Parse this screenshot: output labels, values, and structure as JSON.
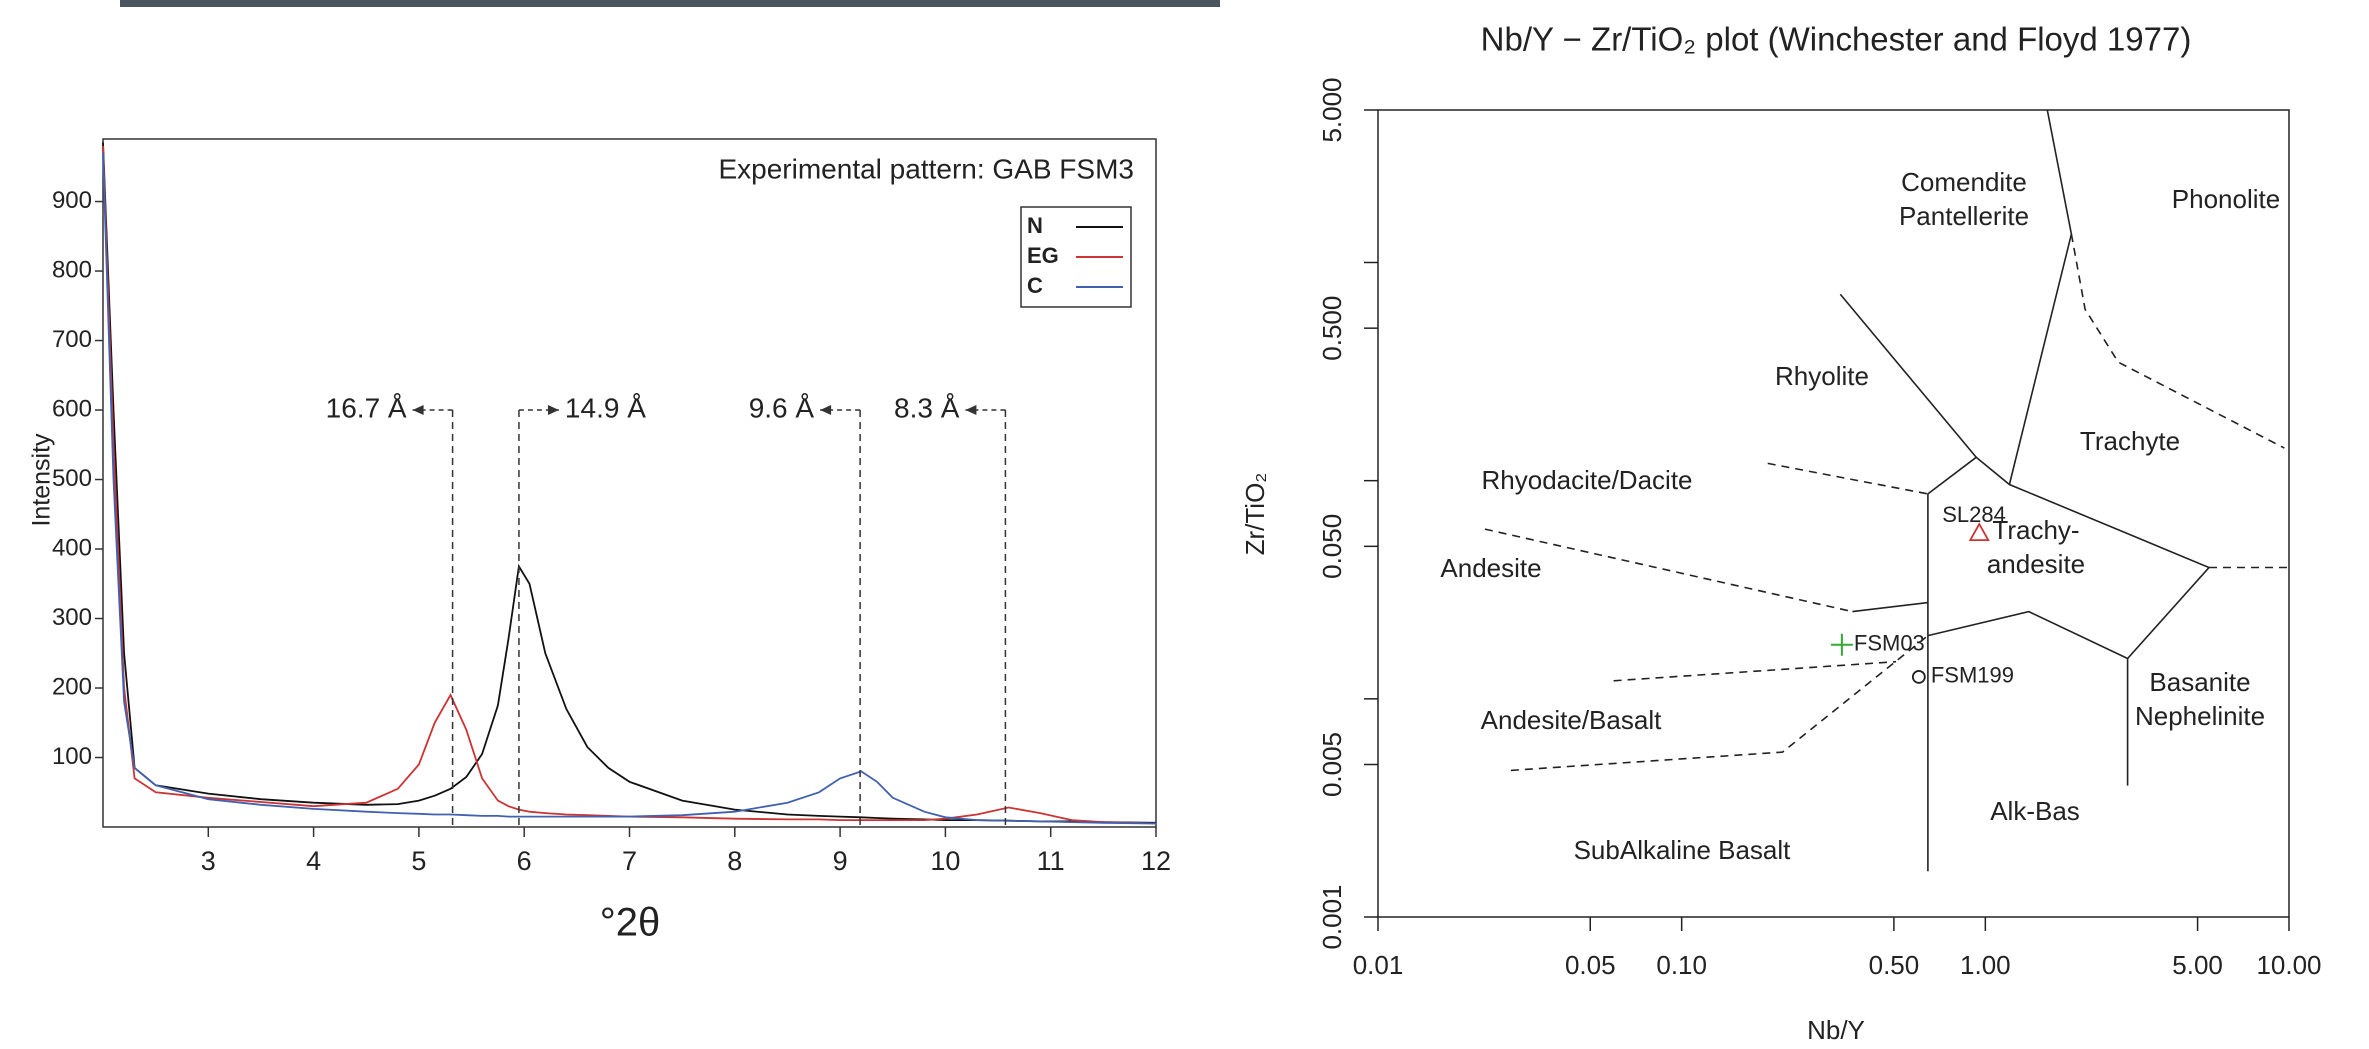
{
  "chart_data": [
    {
      "type": "line",
      "title": "Experimental pattern: GAB FSM3",
      "x_label": "°2θ",
      "y_label": "Intensity",
      "xlim": [
        2,
        12
      ],
      "ylim": [
        0,
        990
      ],
      "xticks": [
        3,
        4,
        5,
        6,
        7,
        8,
        9,
        10,
        11,
        12
      ],
      "yticks": [
        100,
        200,
        300,
        400,
        500,
        600,
        700,
        800,
        900
      ],
      "legend": "top-right",
      "x": [
        2.0,
        2.1,
        2.2,
        2.3,
        2.5,
        3,
        3.5,
        4,
        4.5,
        4.8,
        5,
        5.15,
        5.3,
        5.45,
        5.6,
        5.75,
        5.85,
        5.95,
        6.05,
        6.2,
        6.4,
        6.6,
        6.8,
        7,
        7.5,
        8,
        8.5,
        8.8,
        9.0,
        9.2,
        9.35,
        9.5,
        9.8,
        10,
        10.3,
        10.6,
        10.9,
        11.2,
        11.5,
        12
      ],
      "series": [
        {
          "name": "N",
          "color": "#111111",
          "values": [
            985,
            600,
            250,
            85,
            60,
            48,
            40,
            35,
            32,
            33,
            38,
            45,
            55,
            72,
            105,
            175,
            270,
            375,
            350,
            250,
            170,
            115,
            85,
            65,
            38,
            25,
            18,
            16,
            15,
            14,
            13,
            12,
            11,
            10,
            10,
            9,
            8,
            8,
            7,
            6
          ]
        },
        {
          "name": "EG",
          "color": "#cc3333",
          "values": [
            980,
            550,
            200,
            70,
            50,
            42,
            36,
            30,
            35,
            55,
            90,
            150,
            190,
            140,
            70,
            38,
            30,
            25,
            22,
            20,
            18,
            17,
            16,
            15,
            14,
            12,
            11,
            11,
            10,
            10,
            10,
            10,
            10,
            12,
            18,
            28,
            20,
            10,
            7,
            5
          ]
        },
        {
          "name": "C",
          "color": "#4060b0",
          "values": [
            970,
            500,
            180,
            85,
            60,
            40,
            32,
            26,
            22,
            20,
            19,
            18,
            18,
            17,
            16,
            16,
            15,
            15,
            15,
            15,
            15,
            15,
            15,
            15,
            17,
            22,
            35,
            50,
            70,
            80,
            65,
            42,
            22,
            14,
            10,
            9,
            8,
            7,
            6,
            5
          ]
        }
      ],
      "annotations": [
        {
          "text": "16.7 Å",
          "x": 5.32,
          "direction": "left"
        },
        {
          "text": "14.9 Å",
          "x": 5.95,
          "direction": "right"
        },
        {
          "text": "9.6 Å",
          "x": 9.19,
          "direction": "left"
        },
        {
          "text": "8.3 Å",
          "x": 10.57,
          "direction": "left"
        }
      ]
    },
    {
      "type": "scatter",
      "title": "Nb/Y − Zr/TiO₂ plot (Winchester and Floyd 1977)",
      "x_label": "Nb/Y",
      "y_label": "Zr/TiO₂",
      "xscale": "log",
      "yscale": "log",
      "xlim": [
        0.01,
        10
      ],
      "ylim": [
        0.001,
        5
      ],
      "xticks": [
        {
          "value": 0.01,
          "label": "0.01"
        },
        {
          "value": 0.05,
          "label": "0.05"
        },
        {
          "value": 0.1,
          "label": "0.10"
        },
        {
          "value": 0.5,
          "label": "0.50"
        },
        {
          "value": 1,
          "label": "1.00"
        },
        {
          "value": 5,
          "label": "5.00"
        },
        {
          "value": 10,
          "label": "10.00"
        }
      ],
      "yticks": [
        {
          "value": 0.001,
          "label": "0.001"
        },
        {
          "value": 0.005,
          "label": "0.005"
        },
        {
          "value": 0.05,
          "label": "0.050"
        },
        {
          "value": 0.5,
          "label": "0.500"
        },
        {
          "value": 5,
          "label": "5.000"
        }
      ],
      "yminorticks": [
        0.01,
        0.1,
        1
      ],
      "series": [
        {
          "name": "SL284",
          "color": "#cc3333",
          "marker": "triangle",
          "x": [
            0.955
          ],
          "values": [
            0.0575
          ]
        },
        {
          "name": "FSM03",
          "color": "#33aa33",
          "marker": "plus",
          "x": [
            0.337
          ],
          "values": [
            0.0177
          ]
        },
        {
          "name": "FSM199",
          "color": "#222222",
          "marker": "circle",
          "x": [
            0.604
          ],
          "values": [
            0.0126
          ]
        }
      ],
      "boundaries": [
        {
          "dashed": false,
          "x": [
            0.333,
            0.933
          ],
          "y": [
            0.715,
            0.128
          ]
        },
        {
          "dashed": false,
          "x": [
            1.6,
            1.92,
            1.2
          ],
          "y": [
            5,
            1.35,
            0.096
          ]
        },
        {
          "dashed": false,
          "x": [
            0.647,
            0.647,
            0.933,
            1.2,
            5.45,
            2.94,
            1.39,
            0.647
          ],
          "y": [
            0.00162,
            0.087,
            0.128,
            0.096,
            0.04,
            0.0153,
            0.0251,
            0.0195
          ]
        },
        {
          "dashed": false,
          "x": [
            2.94,
            2.94
          ],
          "y": [
            0.0153,
            0.004
          ]
        },
        {
          "dashed": false,
          "x": [
            0.365,
            0.647
          ],
          "y": [
            0.0251,
            0.0276
          ]
        },
        {
          "dashed": true,
          "x": [
            0.192,
            0.647
          ],
          "y": [
            0.12,
            0.087
          ]
        },
        {
          "dashed": true,
          "x": [
            0.0225,
            0.365
          ],
          "y": [
            0.06,
            0.0251
          ]
        },
        {
          "dashed": true,
          "x": [
            0.0597,
            0.508
          ],
          "y": [
            0.0121,
            0.0148
          ]
        },
        {
          "dashed": true,
          "x": [
            0.0274,
            0.215,
            0.647
          ],
          "y": [
            0.0047,
            0.0057,
            0.0195
          ]
        },
        {
          "dashed": true,
          "x": [
            1.92,
            2.13,
            2.74,
            9.66
          ],
          "y": [
            1.35,
            0.61,
            0.349,
            0.141
          ]
        },
        {
          "dashed": true,
          "x": [
            5.45,
            10
          ],
          "y": [
            0.04,
            0.04
          ]
        }
      ],
      "fields": [
        [
          "Comendite",
          "Pantellerite"
        ],
        [
          "Phonolite"
        ],
        [
          "Rhyolite"
        ],
        [
          "Trachyte"
        ],
        [
          "Rhyodacite/Dacite"
        ],
        [
          "Trachy-",
          "andesite"
        ],
        [
          "Andesite"
        ],
        [
          "Basanite",
          "Nephelinite"
        ],
        [
          "Andesite/Basalt"
        ],
        [
          "Alk-Bas"
        ],
        [
          "SubAlkaline Basalt"
        ]
      ]
    }
  ]
}
